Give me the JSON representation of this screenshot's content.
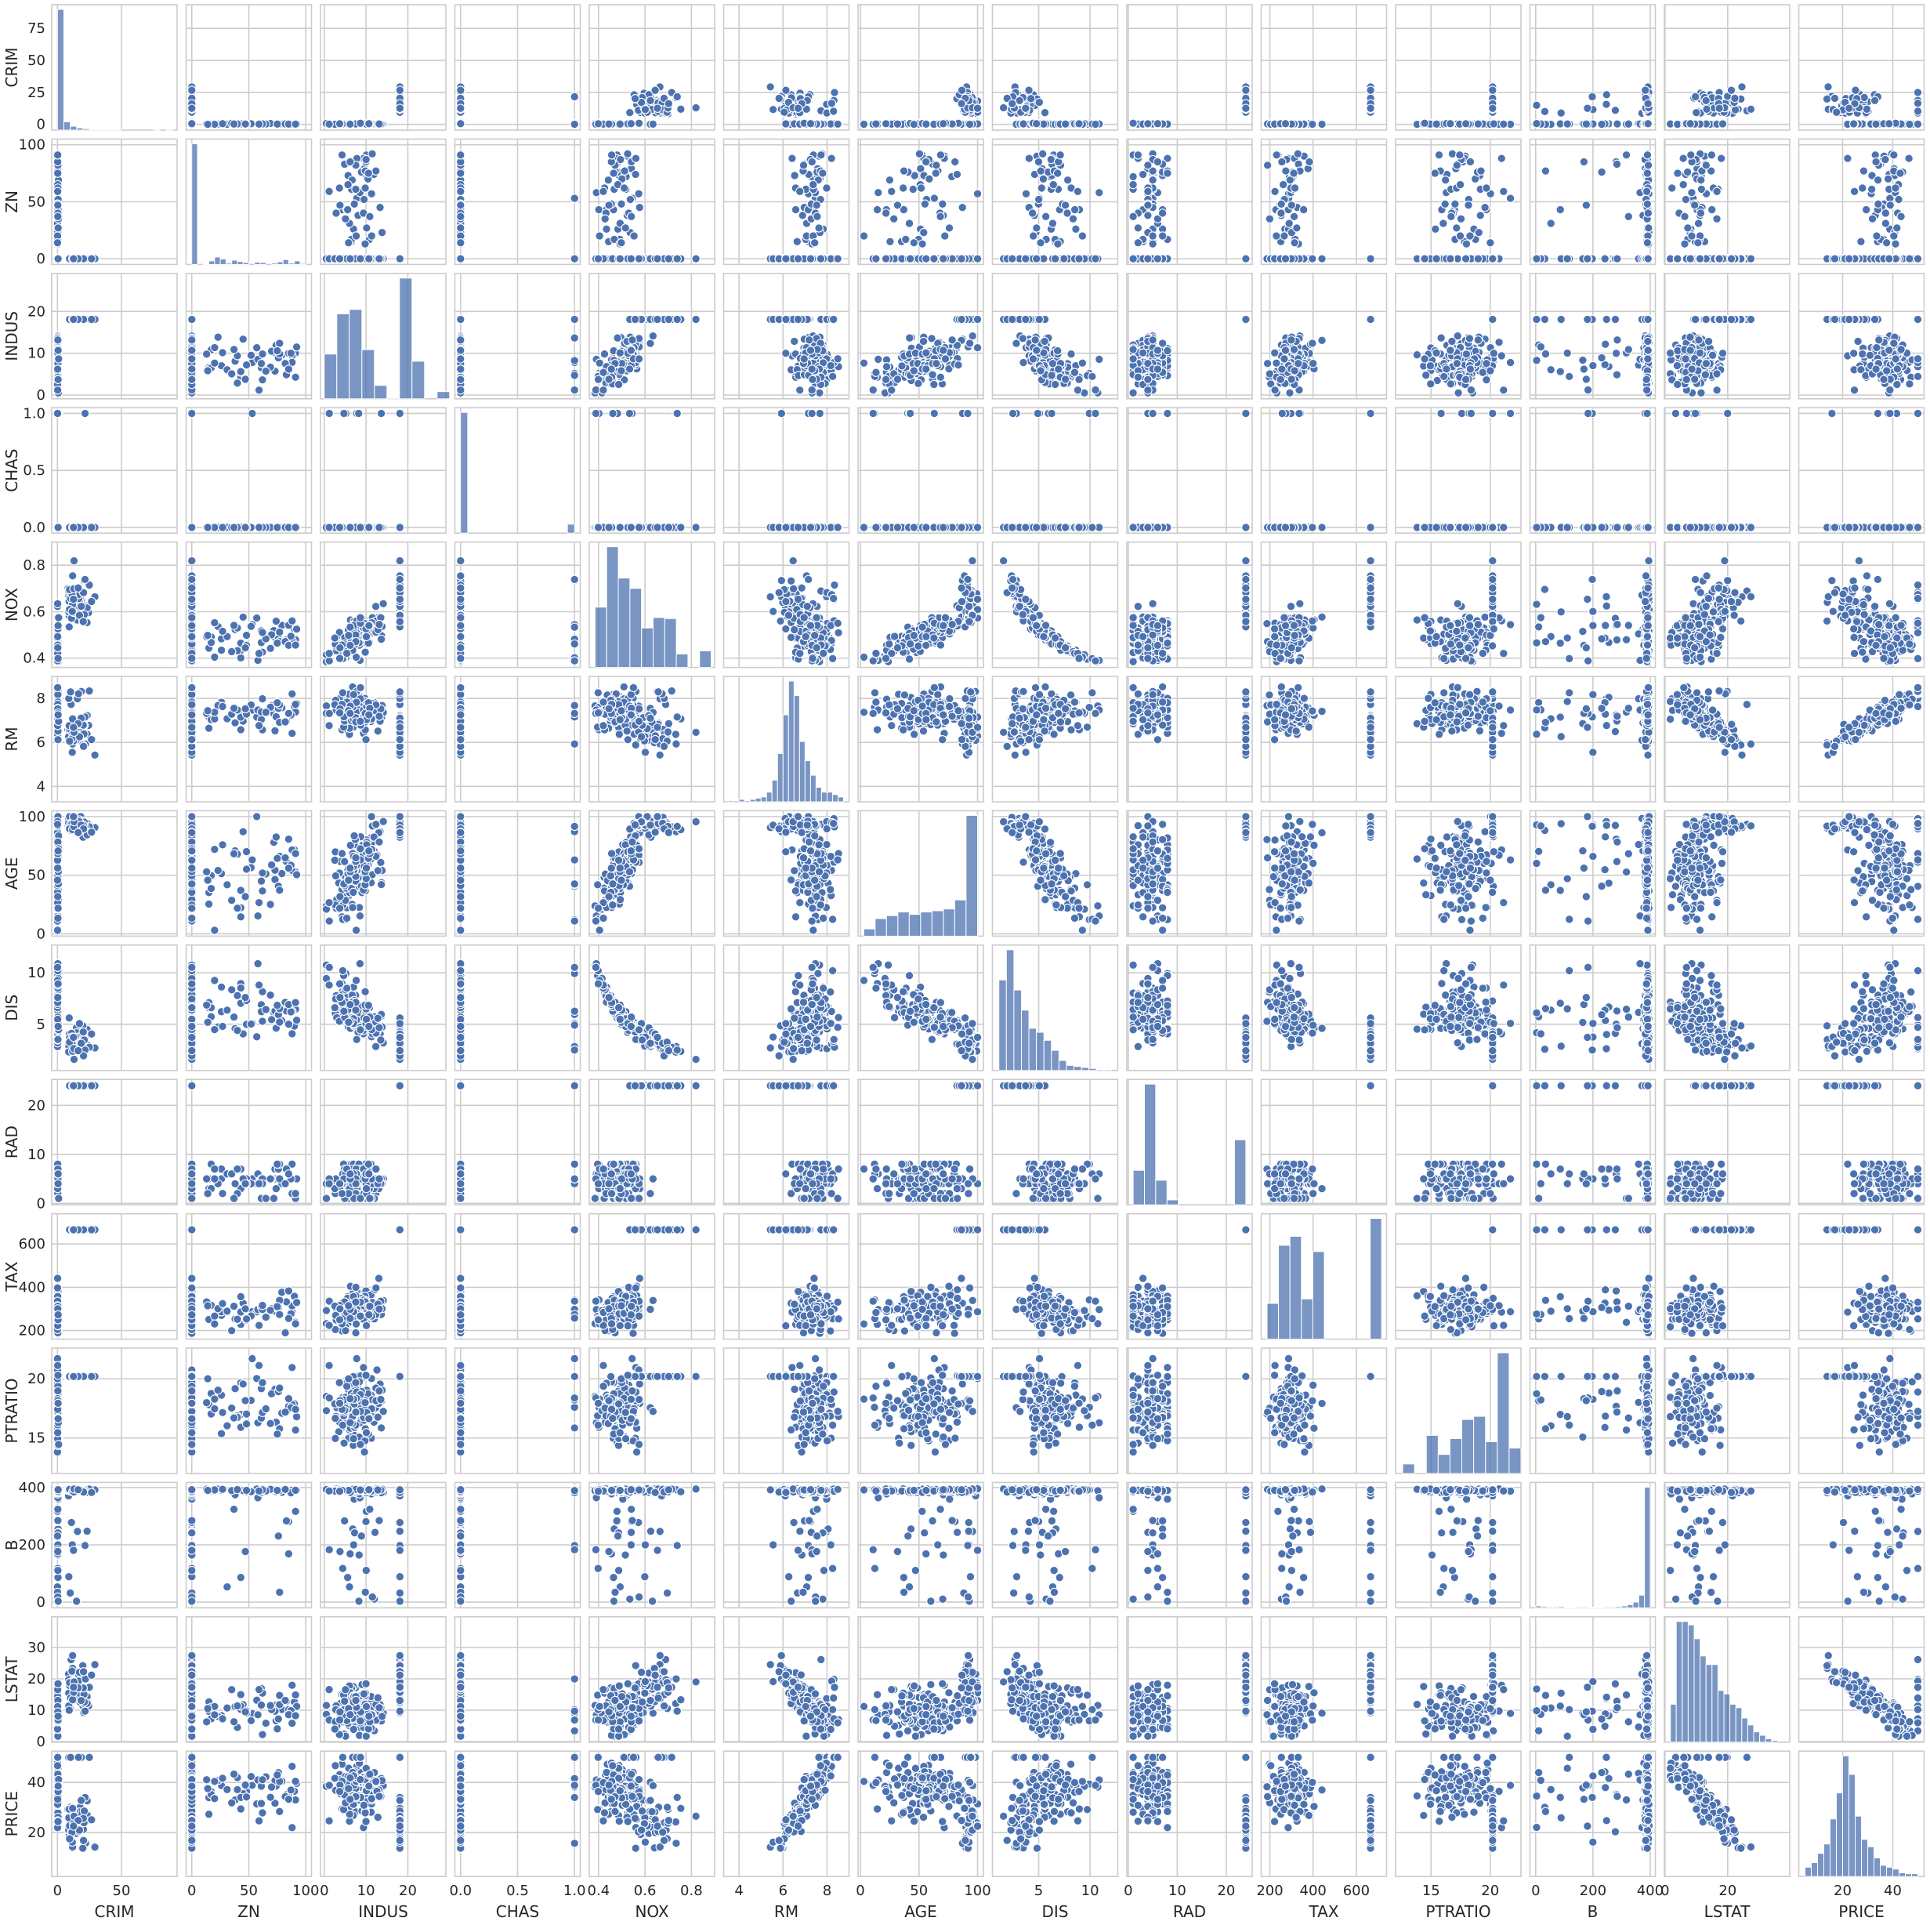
{
  "chart_data": {
    "type": "scatter",
    "kind": "pairplot",
    "diagonal": "histogram",
    "grid": true,
    "color": "#4c72b0",
    "variables": [
      "CRIM",
      "ZN",
      "INDUS",
      "CHAS",
      "NOX",
      "RM",
      "AGE",
      "DIS",
      "RAD",
      "TAX",
      "PTRATIO",
      "B",
      "LSTAT",
      "PRICE"
    ],
    "axes": {
      "CRIM": {
        "range": [
          -4.5,
          93.5
        ],
        "ticks": [
          0,
          25,
          50,
          75
        ],
        "xticks": [
          0,
          50
        ]
      },
      "ZN": {
        "range": [
          -5,
          105
        ],
        "ticks": [
          0,
          50,
          100
        ]
      },
      "INDUS": {
        "range": [
          -0.9,
          29.1
        ],
        "ticks": [
          0,
          10,
          20
        ]
      },
      "CHAS": {
        "range": [
          -0.05,
          1.05
        ],
        "ticks": [
          0.0,
          0.5,
          1.0
        ],
        "tick_labels": [
          "0.0",
          "0.5",
          "1.0"
        ]
      },
      "NOX": {
        "range": [
          0.36,
          0.9
        ],
        "ticks": [
          0.4,
          0.6,
          0.8
        ],
        "tick_labels": [
          "0.4",
          "0.6",
          "0.8"
        ]
      },
      "RM": {
        "range": [
          3.3,
          9.0
        ],
        "ticks": [
          4,
          6,
          8
        ]
      },
      "AGE": {
        "range": [
          -2,
          105
        ],
        "ticks": [
          0,
          50,
          100
        ]
      },
      "DIS": {
        "range": [
          0.5,
          12.7
        ],
        "ticks": [
          5,
          10
        ]
      },
      "RAD": {
        "range": [
          -0.3,
          25.3
        ],
        "ticks": [
          0,
          10,
          20
        ]
      },
      "TAX": {
        "range": [
          160,
          740
        ],
        "ticks": [
          200,
          400,
          600
        ]
      },
      "PTRATIO": {
        "range": [
          12.0,
          22.6
        ],
        "ticks": [
          15,
          20
        ]
      },
      "B": {
        "range": [
          -20,
          418
        ],
        "ticks": [
          0,
          200,
          400
        ]
      },
      "LSTAT": {
        "range": [
          -0.2,
          39.8
        ],
        "ticks": [
          0,
          10,
          20,
          30
        ],
        "xticks": [
          0,
          20
        ]
      },
      "PRICE": {
        "range": [
          2.5,
          52.5
        ],
        "ticks": [
          20,
          40
        ]
      }
    },
    "histograms": {
      "CRIM": {
        "edges": [
          0,
          5,
          10,
          15,
          20,
          25,
          30,
          35,
          40,
          45,
          50,
          55,
          60,
          65,
          70,
          75,
          80,
          85,
          90
        ],
        "counts": [
          440,
          30,
          14,
          8,
          5,
          3,
          2,
          1,
          1,
          1,
          0,
          0,
          0,
          0,
          0,
          1,
          0,
          1
        ]
      },
      "ZN": {
        "edges": [
          0,
          5,
          10,
          15,
          20,
          25,
          30,
          35,
          40,
          45,
          50,
          55,
          60,
          65,
          70,
          75,
          80,
          85,
          90,
          95,
          100
        ],
        "counts": [
          372,
          0,
          1,
          11,
          23,
          17,
          4,
          13,
          9,
          6,
          0,
          7,
          6,
          0,
          4,
          8,
          15,
          4,
          11,
          3,
          2
        ]
      },
      "INDUS": {
        "edges": [
          0,
          3,
          6,
          9,
          12,
          15,
          18,
          21,
          24,
          27,
          30
        ],
        "counts": [
          50,
          95,
          100,
          55,
          15,
          1,
          135,
          42,
          0,
          8
        ]
      },
      "CHAS": {
        "edges": [
          0,
          0.0625,
          0.125,
          0.1875,
          0.25,
          0.3125,
          0.375,
          0.4375,
          0.5,
          0.5625,
          0.625,
          0.6875,
          0.75,
          0.8125,
          0.875,
          0.9375,
          1.0
        ],
        "counts": [
          471,
          0,
          0,
          0,
          0,
          0,
          0,
          0,
          0,
          0,
          0,
          0,
          0,
          0,
          0,
          35
        ]
      },
      "NOX": {
        "edges": [
          0.385,
          0.435,
          0.485,
          0.535,
          0.585,
          0.635,
          0.685,
          0.735,
          0.785,
          0.835,
          0.885
        ],
        "counts": [
          58,
          116,
          86,
          76,
          38,
          48,
          47,
          13,
          0,
          16
        ]
      },
      "RM": {
        "edges": [
          3.5,
          3.75,
          4.0,
          4.25,
          4.5,
          4.75,
          5.0,
          5.25,
          5.5,
          5.75,
          6.0,
          6.25,
          6.5,
          6.75,
          7.0,
          7.25,
          7.5,
          7.75,
          8.0,
          8.25,
          8.5,
          8.75
        ],
        "counts": [
          1,
          0,
          2,
          1,
          2,
          3,
          4,
          8,
          18,
          40,
          72,
          100,
          88,
          50,
          34,
          22,
          12,
          8,
          8,
          6,
          4,
          2
        ]
      },
      "AGE": {
        "edges": [
          2.9,
          12.6,
          22.3,
          32.0,
          41.7,
          51.4,
          61.1,
          70.8,
          80.5,
          90.2,
          100
        ],
        "counts": [
          12,
          29,
          34,
          40,
          36,
          40,
          42,
          45,
          60,
          200
        ]
      },
      "DIS": {
        "edges": [
          1.13,
          1.86,
          2.59,
          3.32,
          4.05,
          4.78,
          5.51,
          6.24,
          6.97,
          7.7,
          8.43,
          9.16,
          9.89,
          10.62,
          11.35,
          12.08
        ],
        "counts": [
          90,
          120,
          80,
          60,
          42,
          38,
          30,
          20,
          10,
          5,
          4,
          3,
          2,
          1,
          1
        ]
      },
      "RAD": {
        "edges": [
          1,
          3.3,
          5.6,
          7.9,
          10.2,
          12.5,
          14.8,
          17.1,
          19.4,
          21.7,
          24
        ],
        "counts": [
          70,
          245,
          50,
          10,
          0,
          0,
          0,
          0,
          0,
          132
        ]
      },
      "TAX": {
        "edges": [
          187,
          240,
          293,
          346,
          399,
          452,
          505,
          558,
          611,
          664,
          717
        ],
        "counts": [
          40,
          105,
          115,
          45,
          98,
          0,
          0,
          0,
          0,
          135
        ]
      },
      "PTRATIO": {
        "edges": [
          12.6,
          13.6,
          14.6,
          15.6,
          16.6,
          17.6,
          18.6,
          19.6,
          20.6,
          21.6,
          22.6
        ],
        "counts": [
          15,
          0,
          60,
          30,
          55,
          85,
          90,
          50,
          190,
          40
        ]
      },
      "B": {
        "edges": [
          0,
          20,
          40,
          60,
          80,
          100,
          120,
          140,
          160,
          180,
          200,
          220,
          240,
          260,
          280,
          300,
          320,
          340,
          360,
          380,
          400
        ],
        "counts": [
          6,
          4,
          3,
          3,
          4,
          2,
          2,
          3,
          3,
          2,
          2,
          2,
          3,
          3,
          4,
          6,
          10,
          18,
          40,
          380
        ]
      },
      "LSTAT": {
        "edges": [
          1.73,
          3.6,
          5.5,
          7.4,
          9.3,
          11.2,
          13.1,
          15.0,
          16.9,
          18.8,
          20.7,
          22.6,
          24.5,
          26.4,
          28.3,
          30.2,
          32.1,
          34.0,
          36.0
        ],
        "counts": [
          22,
          70,
          70,
          68,
          60,
          50,
          45,
          45,
          30,
          28,
          22,
          20,
          14,
          10,
          6,
          4,
          2,
          1
        ]
      },
      "PRICE": {
        "edges": [
          5,
          7.5,
          10,
          12.5,
          15,
          17.5,
          20,
          22.5,
          25,
          27.5,
          30,
          32.5,
          35,
          37.5,
          40,
          42.5,
          45,
          47.5,
          50
        ],
        "counts": [
          10,
          15,
          25,
          35,
          62,
          90,
          130,
          110,
          65,
          40,
          32,
          20,
          12,
          10,
          8,
          4,
          3,
          3
        ]
      }
    },
    "scatter_points": "generated-sample"
  },
  "scatter_sample": {
    "n": 220,
    "note_rows": []
  }
}
